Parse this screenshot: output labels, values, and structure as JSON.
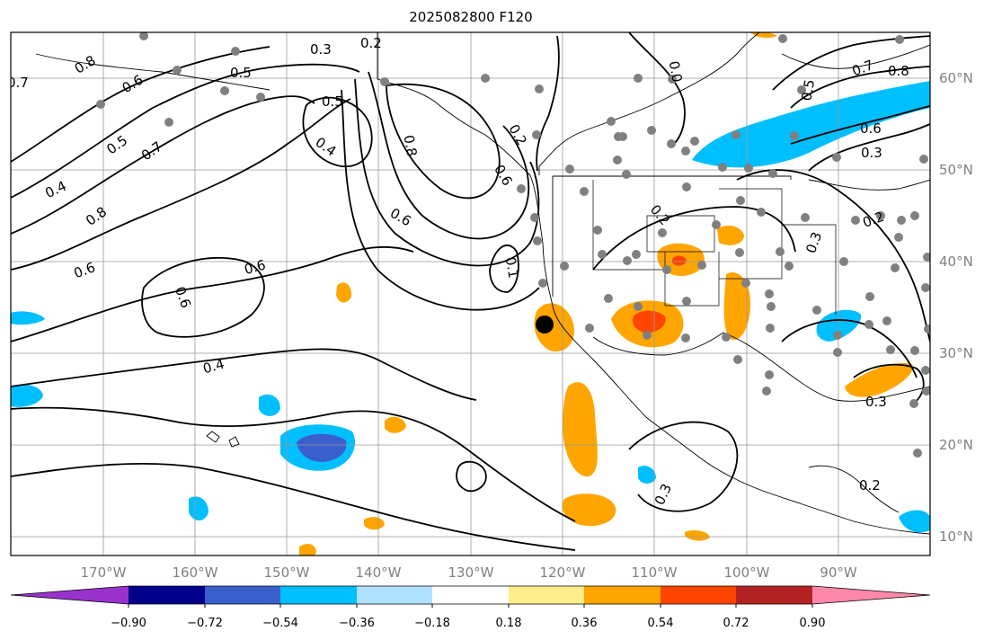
{
  "title": "2025082800 F120",
  "map": {
    "latitude_labels": [
      "60°N",
      "50°N",
      "40°N",
      "30°N",
      "20°N",
      "10°N"
    ],
    "longitude_labels": [
      "170°W",
      "160°W",
      "150°W",
      "140°W",
      "130°W",
      "120°W",
      "110°W",
      "100°W",
      "90°W"
    ],
    "contour_labels": [
      "0.7",
      "0.8",
      "0.6",
      "0.5",
      "0.3",
      "0.2",
      "0.5",
      "0.4",
      "0.8",
      "0.7",
      "0.5",
      "0.4",
      "0.8",
      "0.6",
      "0.6",
      "0.6",
      "0.6",
      "0.4",
      "0.2",
      "0.0",
      "0.7",
      "0.8",
      "0.6",
      "0.3",
      "0.5",
      "0.2",
      "0.3",
      "0.2",
      "0.3",
      "0.3",
      "0.2",
      "0.6",
      "0.1"
    ],
    "colors": {
      "contour": "#000000",
      "grid": "#999999",
      "coast": "#000000",
      "station_dot": "#808080",
      "marker": "#000000"
    }
  },
  "colorbar": {
    "tick_labels": [
      "−0.90",
      "−0.72",
      "−0.54",
      "−0.36",
      "−0.18",
      "0.18",
      "0.36",
      "0.54",
      "0.72",
      "0.90"
    ],
    "colors": [
      "#9932cc",
      "#00008b",
      "#3a5fcd",
      "#00bfff",
      "#b0e2ff",
      "#ffffff",
      "#ffec8b",
      "#ffa500",
      "#ff4500",
      "#b22222",
      "#ff88aa"
    ]
  }
}
